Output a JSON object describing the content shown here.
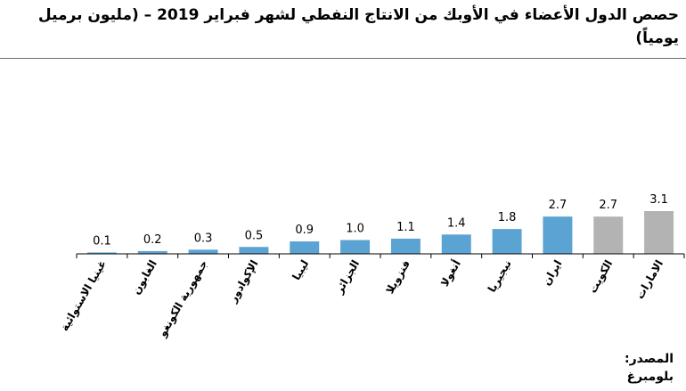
{
  "title": "حصص الدول الأعضاء في الأوبك من الانتاج النفطي لشهر فبراير 2019 – (مليون برميل يومياً)",
  "source_label": "المصدر:",
  "source_value": "بلومبرغ",
  "chart_data": {
    "type": "bar",
    "categories": [
      "الامارات",
      "الكويت",
      "ايران",
      "نيجيريا",
      "أنغولا",
      "فنزويلا",
      "الجزائر",
      "ليبيا",
      "الإكوادور",
      "جمهورية الكونغو",
      "الغابون",
      "غينيا الاستوائية"
    ],
    "values": [
      3.1,
      2.7,
      2.7,
      1.8,
      1.4,
      1.1,
      1.0,
      0.9,
      0.5,
      0.3,
      0.2,
      0.1
    ],
    "value_labels": [
      "3.1",
      "2.7",
      "2.7",
      "1.8",
      "1.4",
      "1.1",
      "1.0",
      "0.9",
      "0.5",
      "0.3",
      "0.2",
      "0.1"
    ],
    "colors": [
      "#b3b3b3",
      "#b3b3b3",
      "#5ba3d3",
      "#5ba3d3",
      "#5ba3d3",
      "#5ba3d3",
      "#5ba3d3",
      "#5ba3d3",
      "#5ba3d3",
      "#5ba3d3",
      "#5ba3d3",
      "#5ba3d3"
    ],
    "direction": "rtl",
    "ylim": [
      0,
      3.1
    ],
    "grid": false,
    "legend": false
  }
}
